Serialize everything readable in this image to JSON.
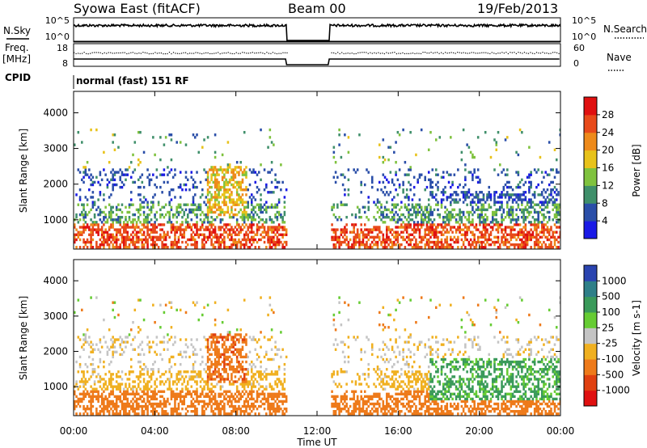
{
  "header": {
    "station": "Syowa East (fitACF)",
    "beam": "Beam 00",
    "date": "19/Feb/2013"
  },
  "top_panels": {
    "nsky_label": "N.Sky",
    "nsky_ticks": [
      "10^5",
      "10^0"
    ],
    "nsearch_label": "N.Search",
    "nsearch_ticks": [
      "10^5",
      "10^0"
    ],
    "freq_label_line1": "Freq.",
    "freq_label_line2": "[MHz]",
    "freq_ticks": [
      "18",
      "8"
    ],
    "nave_label": "Nave",
    "nave_ticks": [
      "60",
      "0"
    ],
    "cpid_label": "CPID",
    "cpid_value": "normal (fast) 151 RF"
  },
  "x_axis": {
    "label": "Time UT",
    "ticks": [
      "00:00",
      "04:00",
      "08:00",
      "12:00",
      "16:00",
      "20:00",
      "00:00"
    ]
  },
  "y_axis": {
    "label": "Slant Range [km]",
    "ticks": [
      "1000",
      "2000",
      "3000",
      "4000"
    ]
  },
  "power_bar": {
    "label": "Power [dB]",
    "ticks": [
      "4",
      "8",
      "12",
      "16",
      "20",
      "24",
      "28"
    ],
    "colors": [
      "#1a1ae6",
      "#2a4ea8",
      "#3f8f6a",
      "#7fc23e",
      "#e8c21a",
      "#ee8a1a",
      "#e84a1a",
      "#e01010"
    ]
  },
  "velocity_bar": {
    "label": "Velocity [m s-1]",
    "ticks": [
      "1000",
      "500",
      "100",
      "25",
      "-25",
      "-100",
      "-500",
      "-1000"
    ],
    "colors": [
      "#2a44b0",
      "#2e7f88",
      "#3a9a5a",
      "#66cc33",
      "#c4c4c4",
      "#f0b020",
      "#ee7a1a",
      "#e04010",
      "#e01010"
    ]
  },
  "chart_data": {
    "type": "heatmap",
    "x_unit": "hours UT",
    "xlim": [
      0,
      24
    ],
    "ylim": [
      180,
      4600
    ],
    "data_gap_hours": [
      10.5,
      12.6
    ],
    "power": {
      "range_bands_km": [
        {
          "range": [
            200,
            900
          ],
          "level": "high",
          "typical_db": 24
        },
        {
          "range": [
            900,
            1400
          ],
          "level": "medium",
          "typical_db": 10
        },
        {
          "range": [
            1400,
            2400
          ],
          "level": "low",
          "typical_db": 6
        }
      ],
      "patch": {
        "time_hours": [
          6.5,
          8.5
        ],
        "range_km": [
          1100,
          2500
        ],
        "typical_db": 18
      }
    },
    "velocity": {
      "range_bands_km": [
        {
          "range": [
            200,
            900
          ],
          "typical_ms": -200
        },
        {
          "range": [
            900,
            2000
          ],
          "typical_ms": -100
        }
      ],
      "patch": {
        "time_hours": [
          6.5,
          8.5
        ],
        "range_km": [
          1200,
          2400
        ],
        "typical_ms": -400
      },
      "late_day": {
        "time_hours": [
          17.5,
          24
        ],
        "range_km": [
          600,
          1800
        ],
        "typical_ms": 200
      }
    }
  }
}
